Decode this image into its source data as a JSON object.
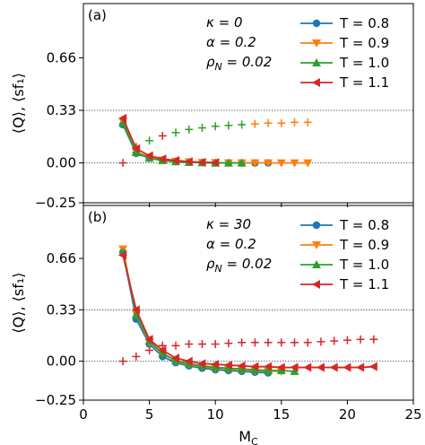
{
  "chart_data": [
    {
      "type": "line",
      "panel_label": "(a)",
      "params": [
        "κ = 0",
        "α = 0.2",
        "ρ_N = 0.02"
      ],
      "ylabel": "⟨Q⟩, ⟨sf₁⟩",
      "xlabel": "",
      "xlim": [
        0,
        25
      ],
      "ylim": [
        -0.25,
        1.0
      ],
      "xticks": [
        0,
        5,
        10,
        15,
        20,
        25
      ],
      "xtick_labels_shown": false,
      "yticks": [
        -0.25,
        0.0,
        0.33,
        0.66
      ],
      "ytick_labels": [
        "−0.25",
        "0.00",
        "0.33",
        "0.66"
      ],
      "reference_lines": [
        0.0,
        0.33
      ],
      "legend_position": "upper right",
      "series": [
        {
          "name": "T = 0.8",
          "color": "#1f77b4",
          "marker": "circle",
          "x": [
            3,
            4,
            5,
            6,
            7,
            8,
            9,
            10,
            11,
            12,
            13,
            14
          ],
          "y": [
            0.24,
            0.06,
            0.03,
            0.015,
            0.008,
            0.004,
            0.002,
            0.0,
            0.0,
            0.0,
            0.0,
            0.0
          ]
        },
        {
          "name": "T = 0.9",
          "color": "#ff7f0e",
          "marker": "triangle-down",
          "x": [
            3,
            4,
            5,
            6,
            7,
            8,
            9,
            10,
            11,
            12,
            13,
            14,
            15,
            16,
            17
          ],
          "y": [
            0.26,
            0.07,
            0.035,
            0.018,
            0.01,
            0.006,
            0.003,
            0.002,
            0.0,
            0.0,
            0.0,
            0.0,
            0.0,
            0.0,
            0.0
          ]
        },
        {
          "name": "T = 1.0",
          "color": "#2ca02c",
          "marker": "triangle-up",
          "x": [
            3,
            4,
            5,
            6,
            7,
            8,
            9,
            10,
            11,
            12
          ],
          "y": [
            0.25,
            0.065,
            0.03,
            0.015,
            0.008,
            0.004,
            0.002,
            0.0,
            0.0,
            0.0
          ]
        },
        {
          "name": "T = 1.1",
          "color": "#d62728",
          "marker": "triangle-left",
          "x": [
            3,
            4,
            5,
            6,
            7,
            8,
            9,
            10
          ],
          "y": [
            0.28,
            0.09,
            0.045,
            0.025,
            0.015,
            0.008,
            0.004,
            0.002
          ]
        }
      ],
      "sf_points": {
        "marker": "plus",
        "x": [
          3,
          4,
          5,
          6,
          7,
          8,
          9,
          10,
          11,
          12,
          13,
          14,
          15,
          16,
          17
        ],
        "y": [
          0.0,
          0.1,
          0.14,
          0.17,
          0.19,
          0.21,
          0.22,
          0.23,
          0.235,
          0.24,
          0.245,
          0.25,
          0.25,
          0.255,
          0.255
        ],
        "colors": [
          "#d62728",
          "#d62728",
          "#2ca02c",
          "#d62728",
          "#2ca02c",
          "#2ca02c",
          "#2ca02c",
          "#2ca02c",
          "#2ca02c",
          "#2ca02c",
          "#ff7f0e",
          "#ff7f0e",
          "#ff7f0e",
          "#ff7f0e",
          "#ff7f0e"
        ]
      }
    },
    {
      "type": "line",
      "panel_label": "(b)",
      "params": [
        "κ = 30",
        "α = 0.2",
        "ρ_N = 0.02"
      ],
      "ylabel": "⟨Q⟩, ⟨sf₁⟩",
      "xlabel": "M_C",
      "xlim": [
        0,
        25
      ],
      "ylim": [
        -0.25,
        1.0
      ],
      "xticks": [
        0,
        5,
        10,
        15,
        20,
        25
      ],
      "xtick_labels": [
        "0",
        "5",
        "10",
        "15",
        "20",
        "25"
      ],
      "yticks": [
        -0.25,
        0.0,
        0.33,
        0.66
      ],
      "ytick_labels": [
        "−0.25",
        "0.00",
        "0.33",
        "0.66"
      ],
      "reference_lines": [
        0.0,
        0.33
      ],
      "legend_position": "upper right",
      "series": [
        {
          "name": "T = 0.8",
          "color": "#1f77b4",
          "marker": "circle",
          "x": [
            3,
            4,
            5,
            6,
            7,
            8,
            9,
            10,
            11,
            12,
            13,
            14
          ],
          "y": [
            0.7,
            0.27,
            0.11,
            0.03,
            -0.01,
            -0.03,
            -0.045,
            -0.055,
            -0.06,
            -0.065,
            -0.07,
            -0.075
          ]
        },
        {
          "name": "T = 0.9",
          "color": "#ff7f0e",
          "marker": "triangle-down",
          "x": [
            3,
            4,
            5,
            6,
            7,
            8,
            9,
            10,
            11,
            12,
            13,
            14,
            15
          ],
          "y": [
            0.72,
            0.3,
            0.12,
            0.05,
            0.0,
            -0.02,
            -0.035,
            -0.045,
            -0.05,
            -0.055,
            -0.06,
            -0.065,
            -0.065
          ]
        },
        {
          "name": "T = 1.0",
          "color": "#2ca02c",
          "marker": "triangle-up",
          "x": [
            3,
            4,
            5,
            6,
            7,
            8,
            9,
            10,
            11,
            12,
            13,
            14,
            15,
            16
          ],
          "y": [
            0.7,
            0.3,
            0.13,
            0.05,
            0.005,
            -0.015,
            -0.03,
            -0.04,
            -0.045,
            -0.05,
            -0.055,
            -0.06,
            -0.06,
            -0.065
          ]
        },
        {
          "name": "T = 1.1",
          "color": "#d62728",
          "marker": "triangle-left",
          "x": [
            3,
            4,
            5,
            6,
            7,
            8,
            9,
            10,
            11,
            12,
            13,
            14,
            15,
            16,
            17,
            18,
            19,
            20,
            21,
            22
          ],
          "y": [
            0.68,
            0.33,
            0.14,
            0.07,
            0.02,
            0.0,
            -0.015,
            -0.02,
            -0.025,
            -0.03,
            -0.035,
            -0.035,
            -0.04,
            -0.04,
            -0.04,
            -0.04,
            -0.04,
            -0.04,
            -0.04,
            -0.035
          ]
        }
      ],
      "sf_points": {
        "marker": "plus",
        "x": [
          3,
          4,
          5,
          6,
          7,
          8,
          9,
          10,
          11,
          12,
          13,
          14,
          15,
          16,
          17,
          18,
          19,
          20,
          21,
          22
        ],
        "y": [
          0.0,
          0.03,
          0.07,
          0.1,
          0.1,
          0.11,
          0.11,
          0.11,
          0.115,
          0.12,
          0.12,
          0.12,
          0.12,
          0.12,
          0.12,
          0.125,
          0.13,
          0.135,
          0.14,
          0.14
        ],
        "colors": [
          "#d62728",
          "#d62728",
          "#d62728",
          "#d62728",
          "#d62728",
          "#d62728",
          "#d62728",
          "#d62728",
          "#d62728",
          "#d62728",
          "#d62728",
          "#d62728",
          "#d62728",
          "#d62728",
          "#d62728",
          "#d62728",
          "#d62728",
          "#d62728",
          "#d62728",
          "#d62728"
        ]
      }
    }
  ]
}
